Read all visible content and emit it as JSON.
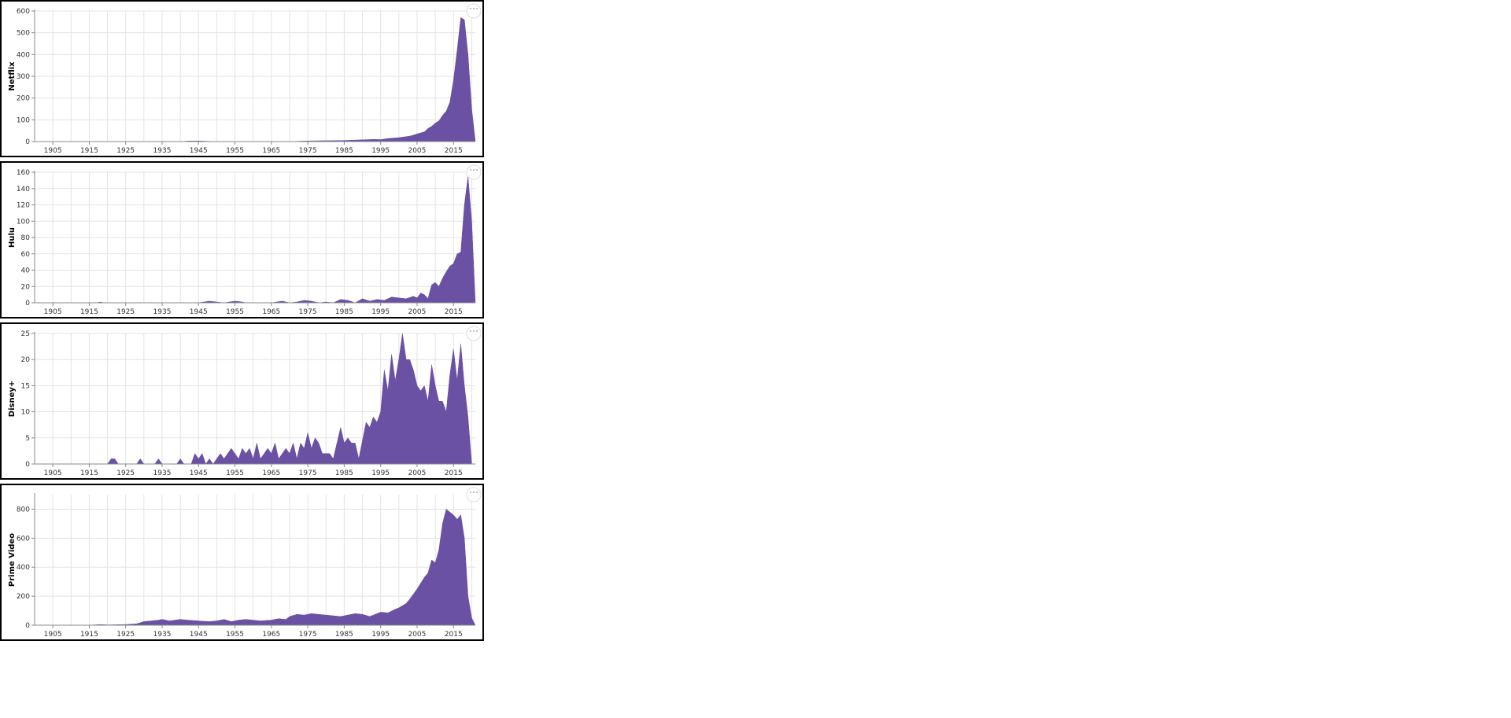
{
  "chart_data": [
    {
      "type": "area",
      "ylabel": "Netflix",
      "xlim": [
        1900,
        2021
      ],
      "ylim": [
        0,
        600
      ],
      "x_ticks": [
        1905,
        1915,
        1925,
        1935,
        1945,
        1955,
        1965,
        1975,
        1985,
        1995,
        2005,
        2015
      ],
      "y_ticks": [
        0,
        100,
        200,
        300,
        400,
        500,
        600
      ],
      "grid": true,
      "color": "#6a51a3",
      "points": [
        [
          1900,
          0
        ],
        [
          1940,
          0
        ],
        [
          1942,
          2
        ],
        [
          1945,
          3
        ],
        [
          1948,
          1
        ],
        [
          1950,
          0
        ],
        [
          1970,
          0
        ],
        [
          1975,
          3
        ],
        [
          1980,
          4
        ],
        [
          1985,
          5
        ],
        [
          1990,
          8
        ],
        [
          1993,
          10
        ],
        [
          1995,
          9
        ],
        [
          1997,
          14
        ],
        [
          2000,
          18
        ],
        [
          2003,
          25
        ],
        [
          2005,
          35
        ],
        [
          2007,
          45
        ],
        [
          2008,
          60
        ],
        [
          2009,
          70
        ],
        [
          2010,
          85
        ],
        [
          2011,
          95
        ],
        [
          2012,
          120
        ],
        [
          2013,
          140
        ],
        [
          2014,
          180
        ],
        [
          2015,
          280
        ],
        [
          2016,
          420
        ],
        [
          2017,
          570
        ],
        [
          2018,
          560
        ],
        [
          2019,
          400
        ],
        [
          2020,
          150
        ],
        [
          2021,
          0
        ]
      ]
    },
    {
      "type": "area",
      "ylabel": "Hulu",
      "xlim": [
        1900,
        2021
      ],
      "ylim": [
        0,
        160
      ],
      "x_ticks": [
        1905,
        1915,
        1925,
        1935,
        1945,
        1955,
        1965,
        1975,
        1985,
        1995,
        2005,
        2015
      ],
      "y_ticks": [
        0,
        20,
        40,
        60,
        80,
        100,
        120,
        140,
        160
      ],
      "grid": true,
      "color": "#6a51a3",
      "points": [
        [
          1900,
          0
        ],
        [
          1917,
          0
        ],
        [
          1918,
          1
        ],
        [
          1919,
          0
        ],
        [
          1945,
          0
        ],
        [
          1948,
          2
        ],
        [
          1950,
          1
        ],
        [
          1952,
          0
        ],
        [
          1955,
          2
        ],
        [
          1957,
          1
        ],
        [
          1958,
          0
        ],
        [
          1965,
          0
        ],
        [
          1968,
          2
        ],
        [
          1970,
          0
        ],
        [
          1972,
          1
        ],
        [
          1974,
          3
        ],
        [
          1976,
          2
        ],
        [
          1978,
          0
        ],
        [
          1980,
          1
        ],
        [
          1982,
          0
        ],
        [
          1984,
          4
        ],
        [
          1986,
          3
        ],
        [
          1988,
          0
        ],
        [
          1990,
          5
        ],
        [
          1992,
          2
        ],
        [
          1994,
          4
        ],
        [
          1996,
          3
        ],
        [
          1998,
          7
        ],
        [
          2000,
          6
        ],
        [
          2002,
          5
        ],
        [
          2004,
          8
        ],
        [
          2005,
          6
        ],
        [
          2006,
          12
        ],
        [
          2007,
          10
        ],
        [
          2008,
          5
        ],
        [
          2009,
          22
        ],
        [
          2010,
          25
        ],
        [
          2011,
          20
        ],
        [
          2012,
          30
        ],
        [
          2013,
          38
        ],
        [
          2014,
          45
        ],
        [
          2015,
          48
        ],
        [
          2016,
          60
        ],
        [
          2017,
          62
        ],
        [
          2018,
          120
        ],
        [
          2019,
          155
        ],
        [
          2020,
          100
        ],
        [
          2021,
          0
        ]
      ]
    },
    {
      "type": "area",
      "ylabel": "Disney+",
      "xlim": [
        1900,
        2021
      ],
      "ylim": [
        0,
        25
      ],
      "x_ticks": [
        1905,
        1915,
        1925,
        1935,
        1945,
        1955,
        1965,
        1975,
        1985,
        1995,
        2005,
        2015
      ],
      "y_ticks": [
        0,
        5,
        10,
        15,
        20,
        25
      ],
      "grid": true,
      "color": "#6a51a3",
      "points": [
        [
          1900,
          0
        ],
        [
          1920,
          0
        ],
        [
          1921,
          1
        ],
        [
          1922,
          1
        ],
        [
          1923,
          0
        ],
        [
          1928,
          0
        ],
        [
          1929,
          1
        ],
        [
          1930,
          0
        ],
        [
          1933,
          0
        ],
        [
          1934,
          1
        ],
        [
          1935,
          0
        ],
        [
          1939,
          0
        ],
        [
          1940,
          1
        ],
        [
          1941,
          0
        ],
        [
          1943,
          0
        ],
        [
          1944,
          2
        ],
        [
          1945,
          1
        ],
        [
          1946,
          2
        ],
        [
          1947,
          0
        ],
        [
          1948,
          1
        ],
        [
          1949,
          0
        ],
        [
          1951,
          2
        ],
        [
          1952,
          1
        ],
        [
          1953,
          2
        ],
        [
          1954,
          3
        ],
        [
          1955,
          2
        ],
        [
          1956,
          1
        ],
        [
          1957,
          3
        ],
        [
          1958,
          2
        ],
        [
          1959,
          3
        ],
        [
          1960,
          1
        ],
        [
          1961,
          4
        ],
        [
          1962,
          1
        ],
        [
          1963,
          2
        ],
        [
          1964,
          3
        ],
        [
          1965,
          2
        ],
        [
          1966,
          4
        ],
        [
          1967,
          1
        ],
        [
          1968,
          2
        ],
        [
          1969,
          3
        ],
        [
          1970,
          2
        ],
        [
          1971,
          4
        ],
        [
          1972,
          1
        ],
        [
          1973,
          4
        ],
        [
          1974,
          3
        ],
        [
          1975,
          6
        ],
        [
          1976,
          3
        ],
        [
          1977,
          5
        ],
        [
          1978,
          4
        ],
        [
          1979,
          2
        ],
        [
          1981,
          2
        ],
        [
          1982,
          1
        ],
        [
          1984,
          7
        ],
        [
          1985,
          4
        ],
        [
          1986,
          5
        ],
        [
          1987,
          4
        ],
        [
          1988,
          4
        ],
        [
          1989,
          1
        ],
        [
          1991,
          8
        ],
        [
          1992,
          7
        ],
        [
          1993,
          9
        ],
        [
          1994,
          8
        ],
        [
          1995,
          10
        ],
        [
          1996,
          18
        ],
        [
          1997,
          14
        ],
        [
          1998,
          21
        ],
        [
          1999,
          16
        ],
        [
          2000,
          20
        ],
        [
          2001,
          25
        ],
        [
          2002,
          20
        ],
        [
          2003,
          20
        ],
        [
          2004,
          18
        ],
        [
          2005,
          15
        ],
        [
          2006,
          14
        ],
        [
          2007,
          15
        ],
        [
          2008,
          12
        ],
        [
          2009,
          19
        ],
        [
          2010,
          15
        ],
        [
          2011,
          12
        ],
        [
          2012,
          12
        ],
        [
          2013,
          10
        ],
        [
          2014,
          17
        ],
        [
          2015,
          22
        ],
        [
          2016,
          16
        ],
        [
          2017,
          23
        ],
        [
          2018,
          15
        ],
        [
          2019,
          9
        ],
        [
          2020,
          0
        ]
      ]
    },
    {
      "type": "area",
      "ylabel": "Prime Video",
      "xlim": [
        1900,
        2021
      ],
      "ylim": [
        0,
        900
      ],
      "x_ticks": [
        1905,
        1915,
        1925,
        1935,
        1945,
        1955,
        1965,
        1975,
        1985,
        1995,
        2005,
        2015
      ],
      "y_ticks": [
        0,
        200,
        400,
        600,
        800
      ],
      "grid": true,
      "color": "#6a51a3",
      "points": [
        [
          1900,
          0
        ],
        [
          1915,
          0
        ],
        [
          1918,
          5
        ],
        [
          1920,
          2
        ],
        [
          1925,
          5
        ],
        [
          1928,
          10
        ],
        [
          1930,
          25
        ],
        [
          1932,
          30
        ],
        [
          1934,
          35
        ],
        [
          1935,
          40
        ],
        [
          1937,
          30
        ],
        [
          1940,
          40
        ],
        [
          1942,
          35
        ],
        [
          1945,
          30
        ],
        [
          1948,
          25
        ],
        [
          1950,
          30
        ],
        [
          1952,
          40
        ],
        [
          1954,
          25
        ],
        [
          1956,
          35
        ],
        [
          1958,
          40
        ],
        [
          1960,
          35
        ],
        [
          1962,
          30
        ],
        [
          1965,
          35
        ],
        [
          1967,
          45
        ],
        [
          1969,
          40
        ],
        [
          1970,
          60
        ],
        [
          1972,
          75
        ],
        [
          1974,
          70
        ],
        [
          1976,
          80
        ],
        [
          1978,
          75
        ],
        [
          1980,
          70
        ],
        [
          1982,
          65
        ],
        [
          1984,
          60
        ],
        [
          1986,
          70
        ],
        [
          1988,
          80
        ],
        [
          1990,
          75
        ],
        [
          1992,
          60
        ],
        [
          1993,
          70
        ],
        [
          1995,
          90
        ],
        [
          1997,
          85
        ],
        [
          1999,
          110
        ],
        [
          2000,
          120
        ],
        [
          2002,
          150
        ],
        [
          2003,
          180
        ],
        [
          2005,
          250
        ],
        [
          2007,
          330
        ],
        [
          2008,
          360
        ],
        [
          2009,
          450
        ],
        [
          2010,
          430
        ],
        [
          2011,
          520
        ],
        [
          2012,
          700
        ],
        [
          2013,
          800
        ],
        [
          2014,
          780
        ],
        [
          2015,
          760
        ],
        [
          2016,
          730
        ],
        [
          2017,
          760
        ],
        [
          2018,
          600
        ],
        [
          2019,
          200
        ],
        [
          2020,
          50
        ],
        [
          2021,
          0
        ]
      ]
    }
  ]
}
